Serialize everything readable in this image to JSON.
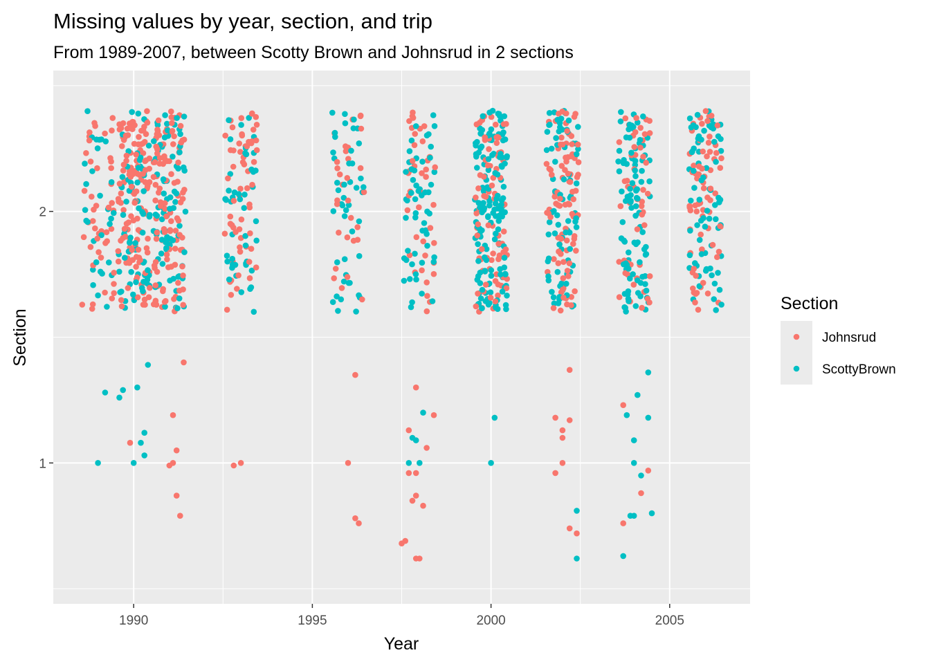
{
  "chart_data": {
    "type": "scatter",
    "title": "Missing values by year, section, and trip",
    "subtitle": "From 1989-2007, between Scotty Brown and Johnsrud in 2 sections",
    "xlabel": "Year",
    "ylabel": "Section",
    "xlim": [
      1987.75,
      2007.25
    ],
    "ylim": [
      0.44,
      2.56
    ],
    "x_ticks": [
      1990,
      1995,
      2000,
      2005
    ],
    "x_tick_labels": [
      "1990",
      "1995",
      "2000",
      "2005"
    ],
    "y_ticks": [
      1,
      2
    ],
    "y_tick_labels": [
      "1",
      "2"
    ],
    "grid": true,
    "panel_background": "#ebebeb",
    "jitter": {
      "width": 0.45,
      "height": 0.4
    },
    "legend": {
      "title": "Section",
      "position": "right",
      "entries": [
        {
          "name": "Johnsrud",
          "color": "#f8766d"
        },
        {
          "name": "ScottyBrown",
          "color": "#00bfc4"
        }
      ]
    },
    "series": [
      {
        "name": "Johnsrud",
        "color": "#f8766d",
        "points": [
          [
            1989.9,
            1.08
          ],
          [
            1991.0,
            0.99
          ],
          [
            1991.1,
            1.0
          ],
          [
            1991.1,
            1.19
          ],
          [
            1991.2,
            1.05
          ],
          [
            1991.2,
            0.87
          ],
          [
            1991.3,
            0.79
          ],
          [
            1991.4,
            1.4
          ],
          [
            1992.8,
            0.99
          ],
          [
            1993.0,
            1.0
          ],
          [
            1996.0,
            1.0
          ],
          [
            1996.2,
            1.35
          ],
          [
            1996.2,
            0.78
          ],
          [
            1996.3,
            0.76
          ],
          [
            1997.5,
            0.68
          ],
          [
            1997.6,
            0.69
          ],
          [
            1997.7,
            1.13
          ],
          [
            1997.7,
            0.96
          ],
          [
            1997.8,
            0.85
          ],
          [
            1997.9,
            0.87
          ],
          [
            1997.9,
            0.96
          ],
          [
            1997.9,
            1.3
          ],
          [
            1997.9,
            0.62
          ],
          [
            1998.0,
            0.62
          ],
          [
            1998.1,
            0.83
          ],
          [
            1998.2,
            1.06
          ],
          [
            1998.4,
            1.19
          ],
          [
            2001.8,
            0.96
          ],
          [
            2001.8,
            1.18
          ],
          [
            2002.0,
            1.13
          ],
          [
            2002.0,
            1.1
          ],
          [
            2002.0,
            1.0
          ],
          [
            2002.2,
            1.17
          ],
          [
            2002.2,
            0.74
          ],
          [
            2002.2,
            1.37
          ],
          [
            2002.4,
            0.72
          ],
          [
            2003.7,
            1.23
          ],
          [
            2003.7,
            0.76
          ],
          [
            2004.2,
            0.88
          ],
          [
            2004.4,
            0.97
          ]
        ]
      },
      {
        "name": "ScottyBrown",
        "color": "#00bfc4",
        "points": [
          [
            1989.0,
            1.0
          ],
          [
            1989.2,
            1.28
          ],
          [
            1989.6,
            1.26
          ],
          [
            1989.7,
            1.29
          ],
          [
            1990.0,
            1.0
          ],
          [
            1990.1,
            1.3
          ],
          [
            1990.2,
            1.08
          ],
          [
            1990.3,
            1.12
          ],
          [
            1990.3,
            1.03
          ],
          [
            1990.4,
            1.39
          ],
          [
            1997.7,
            1.0
          ],
          [
            1997.8,
            1.1
          ],
          [
            1997.9,
            1.09
          ],
          [
            1998.0,
            1.0
          ],
          [
            1998.1,
            1.2
          ],
          [
            2000.0,
            1.0
          ],
          [
            2000.1,
            1.18
          ],
          [
            2002.4,
            0.81
          ],
          [
            2002.4,
            0.62
          ],
          [
            2003.7,
            0.63
          ],
          [
            2003.8,
            1.19
          ],
          [
            2003.9,
            0.79
          ],
          [
            2004.0,
            0.79
          ],
          [
            2004.0,
            1.09
          ],
          [
            2004.0,
            1.0
          ],
          [
            2004.1,
            1.27
          ],
          [
            2004.2,
            0.95
          ],
          [
            2004.4,
            1.18
          ],
          [
            2004.4,
            1.36
          ],
          [
            2004.5,
            0.8
          ]
        ]
      }
    ],
    "section_2_clusters": [
      {
        "year": 1989,
        "johnsrud_points": 45,
        "scottybrown_points": 30
      },
      {
        "year": 1990,
        "johnsrud_points": 130,
        "scottybrown_points": 70
      },
      {
        "year": 1991,
        "johnsrud_points": 110,
        "scottybrown_points": 80
      },
      {
        "year": 1993,
        "johnsrud_points": 60,
        "scottybrown_points": 45
      },
      {
        "year": 1996,
        "johnsrud_points": 30,
        "scottybrown_points": 45
      },
      {
        "year": 1998,
        "johnsrud_points": 40,
        "scottybrown_points": 55
      },
      {
        "year": 2000,
        "johnsrud_points": 80,
        "scottybrown_points": 150
      },
      {
        "year": 2002,
        "johnsrud_points": 90,
        "scottybrown_points": 80
      },
      {
        "year": 2004,
        "johnsrud_points": 50,
        "scottybrown_points": 95
      },
      {
        "year": 2006,
        "johnsrud_points": 70,
        "scottybrown_points": 75
      }
    ]
  }
}
